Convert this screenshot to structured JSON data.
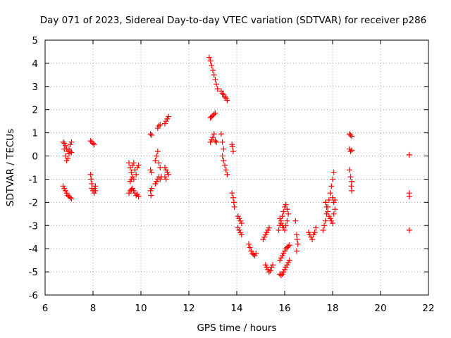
{
  "chart_data": {
    "type": "scatter",
    "title": "Day 071 of 2023, Sidereal Day-to-day VTEC variation (SDTVAR) for receiver p286",
    "xlabel": "GPS time / hours",
    "ylabel": "SDTVAR / TECUs",
    "xlim": [
      6,
      22
    ],
    "ylim": [
      -6,
      5
    ],
    "xticks": [
      "6",
      "8",
      "10",
      "12",
      "14",
      "16",
      "18",
      "20",
      "22"
    ],
    "yticks": [
      "5",
      "4",
      "3",
      "2",
      "1",
      "0",
      "-1",
      "-2",
      "-3",
      "-4",
      "-5",
      "-6"
    ],
    "grid": true,
    "marker": "+",
    "marker_color": "#ff0000",
    "series": [
      {
        "name": "SDTVAR",
        "segments": [
          [
            [
              6.75,
              0.6
            ],
            [
              6.8,
              0.3
            ],
            [
              6.85,
              0.0
            ],
            [
              6.9,
              -0.2
            ],
            [
              6.95,
              -0.1
            ],
            [
              7.0,
              0.3
            ],
            [
              7.05,
              0.5
            ],
            [
              7.1,
              0.6
            ]
          ],
          [
            [
              6.8,
              0.55
            ],
            [
              6.85,
              0.45
            ],
            [
              6.9,
              0.3
            ],
            [
              6.95,
              0.2
            ],
            [
              7.0,
              0.1
            ],
            [
              7.05,
              0.2
            ],
            [
              7.1,
              0.15
            ]
          ],
          [
            [
              6.75,
              -1.3
            ],
            [
              6.8,
              -1.4
            ],
            [
              6.85,
              -1.5
            ],
            [
              6.9,
              -1.6
            ],
            [
              6.95,
              -1.7
            ],
            [
              7.0,
              -1.75
            ],
            [
              7.05,
              -1.8
            ],
            [
              7.1,
              -1.85
            ]
          ],
          [
            [
              7.9,
              0.65
            ],
            [
              7.95,
              0.6
            ],
            [
              8.0,
              0.55
            ],
            [
              8.05,
              0.5
            ]
          ],
          [
            [
              7.9,
              -0.8
            ],
            [
              7.92,
              -1.0
            ],
            [
              7.95,
              -1.2
            ],
            [
              7.95,
              -1.4
            ],
            [
              8.0,
              -1.5
            ],
            [
              8.05,
              -1.4
            ],
            [
              8.05,
              -1.6
            ],
            [
              8.1,
              -1.5
            ],
            [
              8.1,
              -1.3
            ]
          ],
          [
            [
              9.5,
              -0.3
            ],
            [
              9.55,
              -0.5
            ],
            [
              9.6,
              -0.7
            ],
            [
              9.65,
              -0.4
            ],
            [
              9.7,
              -0.3
            ],
            [
              9.75,
              -0.6
            ],
            [
              9.8,
              -0.8
            ],
            [
              9.85,
              -0.5
            ],
            [
              9.9,
              -0.4
            ]
          ],
          [
            [
              9.55,
              -1.1
            ],
            [
              9.6,
              -1.0
            ],
            [
              9.65,
              -0.9
            ],
            [
              9.7,
              -1.0
            ]
          ],
          [
            [
              9.5,
              -1.6
            ],
            [
              9.55,
              -1.5
            ],
            [
              9.6,
              -1.45
            ],
            [
              9.65,
              -1.4
            ],
            [
              9.7,
              -1.5
            ],
            [
              9.75,
              -1.6
            ],
            [
              9.8,
              -1.7
            ],
            [
              9.85,
              -1.65
            ],
            [
              9.9,
              -1.75
            ]
          ],
          [
            [
              10.4,
              0.95
            ],
            [
              10.45,
              0.9
            ]
          ],
          [
            [
              10.4,
              -0.6
            ],
            [
              10.45,
              -0.7
            ]
          ],
          [
            [
              10.4,
              -1.5
            ],
            [
              10.42,
              -1.7
            ],
            [
              10.45,
              -1.4
            ]
          ],
          [
            [
              10.6,
              -0.2
            ],
            [
              10.65,
              0.0
            ],
            [
              10.7,
              0.2
            ],
            [
              10.75,
              -0.3
            ],
            [
              10.8,
              -0.5
            ]
          ],
          [
            [
              10.6,
              -1.2
            ],
            [
              10.65,
              -1.1
            ],
            [
              10.7,
              -1.0
            ],
            [
              10.75,
              -0.9
            ],
            [
              10.8,
              -1.0
            ],
            [
              10.85,
              -0.9
            ]
          ],
          [
            [
              10.7,
              1.2
            ],
            [
              10.75,
              1.3
            ],
            [
              10.8,
              1.35
            ]
          ],
          [
            [
              11.0,
              1.4
            ],
            [
              11.05,
              1.5
            ],
            [
              11.1,
              1.6
            ],
            [
              11.15,
              1.7
            ]
          ],
          [
            [
              11.0,
              -0.5
            ],
            [
              11.05,
              -0.6
            ],
            [
              11.1,
              -0.7
            ],
            [
              11.15,
              -0.8
            ],
            [
              11.0,
              -0.9
            ],
            [
              11.05,
              -1.0
            ]
          ],
          [
            [
              12.85,
              4.25
            ],
            [
              12.9,
              4.1
            ],
            [
              12.95,
              3.9
            ],
            [
              13.0,
              3.7
            ],
            [
              13.05,
              3.5
            ],
            [
              13.1,
              3.3
            ],
            [
              13.15,
              3.1
            ],
            [
              13.2,
              2.9
            ]
          ],
          [
            [
              12.9,
              1.65
            ],
            [
              12.95,
              1.7
            ],
            [
              13.0,
              1.75
            ],
            [
              13.05,
              1.8
            ],
            [
              13.1,
              1.85
            ]
          ],
          [
            [
              12.9,
              0.6
            ],
            [
              12.95,
              0.7
            ],
            [
              13.0,
              0.8
            ],
            [
              13.05,
              0.95
            ],
            [
              13.1,
              0.65
            ],
            [
              13.15,
              0.6
            ]
          ],
          [
            [
              13.35,
              2.8
            ],
            [
              13.4,
              2.7
            ],
            [
              13.45,
              2.65
            ],
            [
              13.5,
              2.55
            ],
            [
              13.55,
              2.5
            ],
            [
              13.6,
              2.4
            ]
          ],
          [
            [
              13.35,
              0.95
            ],
            [
              13.4,
              0.6
            ],
            [
              13.45,
              0.3
            ],
            [
              13.4,
              0.0
            ],
            [
              13.45,
              -0.2
            ],
            [
              13.5,
              -0.4
            ],
            [
              13.55,
              -0.6
            ],
            [
              13.6,
              -0.8
            ]
          ],
          [
            [
              13.8,
              0.5
            ],
            [
              13.82,
              0.4
            ],
            [
              13.85,
              0.2
            ]
          ],
          [
            [
              13.8,
              -1.6
            ],
            [
              13.85,
              -1.8
            ],
            [
              13.88,
              -2.0
            ],
            [
              13.9,
              -2.2
            ]
          ],
          [
            [
              14.05,
              -2.6
            ],
            [
              14.1,
              -2.7
            ],
            [
              14.15,
              -2.8
            ],
            [
              14.2,
              -2.9
            ]
          ],
          [
            [
              14.05,
              -3.1
            ],
            [
              14.1,
              -3.2
            ],
            [
              14.15,
              -3.3
            ],
            [
              14.2,
              -3.4
            ]
          ],
          [
            [
              14.5,
              -3.8
            ],
            [
              14.55,
              -3.95
            ],
            [
              14.6,
              -4.1
            ],
            [
              14.65,
              -4.2
            ],
            [
              14.7,
              -4.25
            ],
            [
              14.75,
              -4.3
            ],
            [
              14.8,
              -4.2
            ]
          ],
          [
            [
              15.1,
              -3.6
            ],
            [
              15.15,
              -3.5
            ],
            [
              15.2,
              -3.4
            ],
            [
              15.25,
              -3.3
            ],
            [
              15.3,
              -3.2
            ],
            [
              15.35,
              -3.1
            ]
          ],
          [
            [
              15.2,
              -4.7
            ],
            [
              15.25,
              -4.8
            ],
            [
              15.3,
              -4.9
            ],
            [
              15.35,
              -5.0
            ],
            [
              15.4,
              -4.95
            ],
            [
              15.45,
              -4.8
            ],
            [
              15.5,
              -4.7
            ]
          ],
          [
            [
              15.75,
              -3.2
            ],
            [
              15.8,
              -3.0
            ],
            [
              15.85,
              -2.8
            ],
            [
              15.9,
              -2.6
            ],
            [
              15.95,
              -2.4
            ],
            [
              16.0,
              -2.2
            ],
            [
              16.05,
              -2.1
            ],
            [
              16.1,
              -2.3
            ],
            [
              16.15,
              -2.5
            ]
          ],
          [
            [
              15.8,
              -2.7
            ],
            [
              15.85,
              -2.9
            ],
            [
              15.9,
              -3.0
            ],
            [
              15.95,
              -3.1
            ],
            [
              16.0,
              -3.2
            ],
            [
              16.05,
              -3.0
            ],
            [
              16.1,
              -2.8
            ]
          ],
          [
            [
              15.8,
              -4.5
            ],
            [
              15.85,
              -4.4
            ],
            [
              15.9,
              -4.3
            ],
            [
              15.95,
              -4.2
            ],
            [
              16.0,
              -4.1
            ],
            [
              16.05,
              -4.0
            ],
            [
              16.1,
              -3.95
            ],
            [
              16.15,
              -3.9
            ],
            [
              16.2,
              -3.85
            ]
          ],
          [
            [
              15.8,
              -5.1
            ],
            [
              15.85,
              -5.15
            ],
            [
              15.9,
              -5.1
            ],
            [
              15.95,
              -5.0
            ],
            [
              16.0,
              -4.9
            ],
            [
              16.05,
              -4.8
            ],
            [
              16.1,
              -4.7
            ],
            [
              16.15,
              -4.6
            ],
            [
              16.2,
              -4.5
            ]
          ],
          [
            [
              16.45,
              -2.8
            ],
            [
              16.5,
              -3.4
            ],
            [
              16.52,
              -3.6
            ],
            [
              16.55,
              -3.8
            ],
            [
              16.5,
              -4.1
            ]
          ],
          [
            [
              17.0,
              -3.3
            ],
            [
              17.05,
              -3.4
            ],
            [
              17.1,
              -3.5
            ],
            [
              17.15,
              -3.6
            ],
            [
              17.2,
              -3.4
            ],
            [
              17.25,
              -3.3
            ],
            [
              17.3,
              -3.1
            ]
          ],
          [
            [
              17.6,
              -3.2
            ],
            [
              17.65,
              -3.0
            ],
            [
              17.7,
              -2.8
            ],
            [
              17.75,
              -2.5
            ],
            [
              17.8,
              -2.2
            ],
            [
              17.85,
              -1.9
            ],
            [
              17.9,
              -1.6
            ],
            [
              17.95,
              -1.3
            ],
            [
              18.0,
              -1.0
            ],
            [
              18.05,
              -0.7
            ]
          ],
          [
            [
              17.7,
              -2.0
            ],
            [
              17.75,
              -2.2
            ],
            [
              17.8,
              -2.4
            ],
            [
              17.85,
              -2.6
            ],
            [
              17.9,
              -2.7
            ],
            [
              17.95,
              -2.8
            ],
            [
              18.0,
              -2.9
            ],
            [
              18.05,
              -2.5
            ]
          ],
          [
            [
              18.0,
              -1.8
            ],
            [
              18.05,
              -2.0
            ],
            [
              18.1,
              -1.9
            ],
            [
              18.1,
              -2.3
            ]
          ],
          [
            [
              18.7,
              0.95
            ],
            [
              18.75,
              0.9
            ],
            [
              18.8,
              0.85
            ]
          ],
          [
            [
              18.7,
              0.3
            ],
            [
              18.75,
              0.2
            ],
            [
              18.8,
              0.25
            ]
          ],
          [
            [
              18.7,
              -0.6
            ],
            [
              18.75,
              -0.9
            ],
            [
              18.8,
              -1.1
            ],
            [
              18.78,
              -1.3
            ],
            [
              18.8,
              -1.5
            ]
          ],
          [
            [
              21.2,
              0.05
            ]
          ],
          [
            [
              21.2,
              -1.6
            ],
            [
              21.2,
              -1.75
            ]
          ],
          [
            [
              21.2,
              -3.2
            ]
          ]
        ]
      }
    ]
  }
}
